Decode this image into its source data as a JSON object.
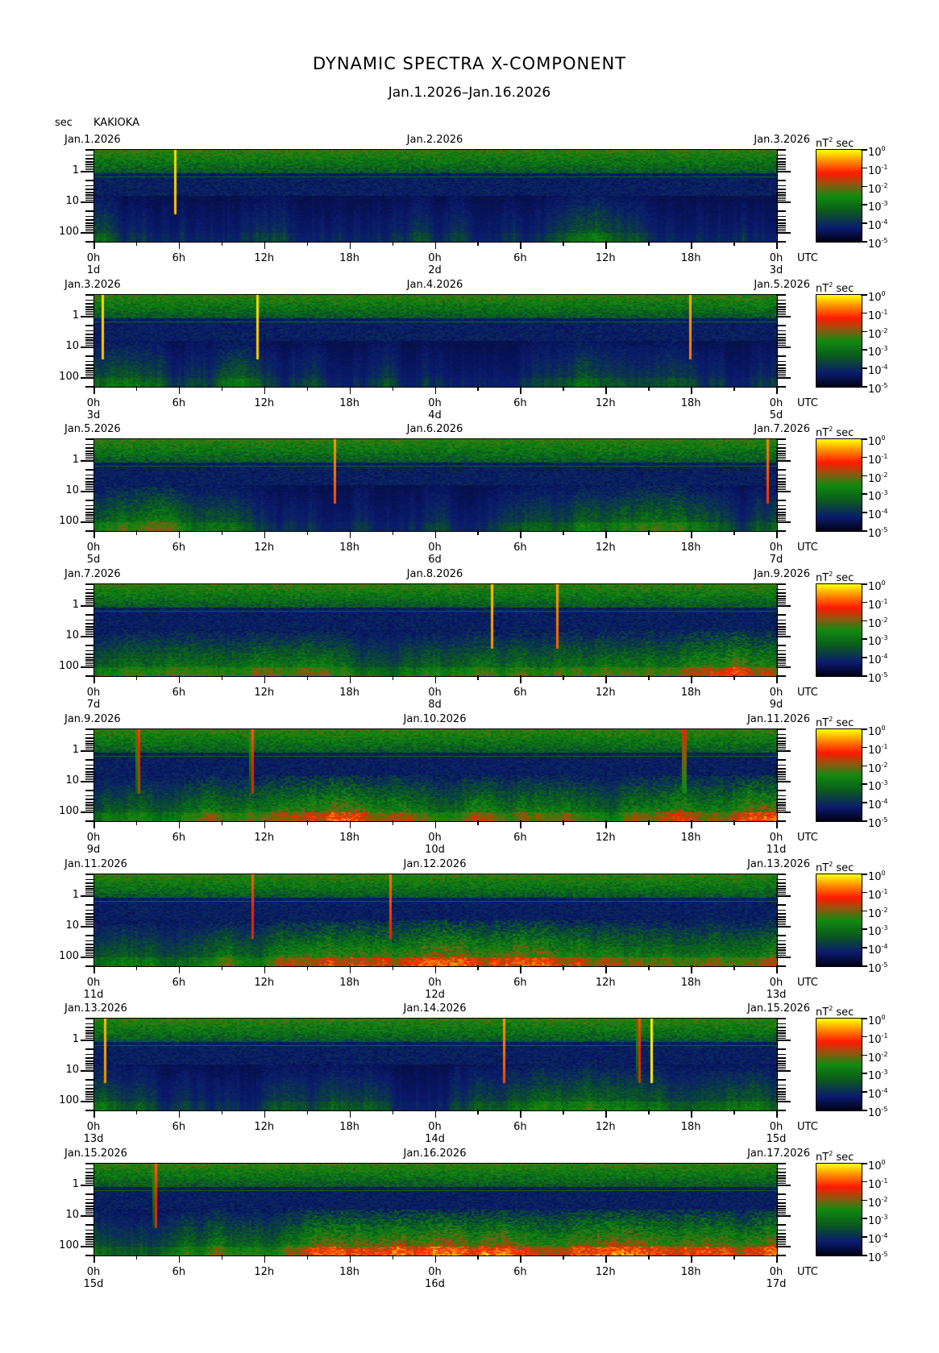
{
  "chart_data": {
    "type": "heatmap",
    "title": "DYNAMIC SPECTRA X-COMPONENT",
    "subtitle": "Jan.1.2026–Jan.16.2026",
    "station": "KAKIOKA",
    "ylabel": "sec",
    "y_scale": "log",
    "ylim": [
      0.2,
      200
    ],
    "yticks": [
      "1",
      "10",
      "100"
    ],
    "xticks": [
      "0h",
      "6h",
      "12h",
      "18h",
      "0h",
      "6h",
      "12h",
      "18h",
      "0h"
    ],
    "x_timezone": "UTC",
    "colorbar": {
      "label": "nT",
      "label_sup": "2",
      "label_unit": "sec",
      "scale": "log",
      "range": [
        1e-05,
        1
      ],
      "ticks": [
        {
          "base": "10",
          "exp": "0"
        },
        {
          "base": "10",
          "exp": "-1"
        },
        {
          "base": "10",
          "exp": "-2"
        },
        {
          "base": "10",
          "exp": "-3"
        },
        {
          "base": "10",
          "exp": "-4"
        },
        {
          "base": "10",
          "exp": "-5"
        }
      ],
      "colors": [
        "#000010",
        "#0a1a6e",
        "#0b5f1a",
        "#108a10",
        "#8a5a10",
        "#ff1a00",
        "#ff8a00",
        "#ffff00"
      ]
    },
    "panels": [
      {
        "dates": [
          "Jan.1.2026",
          "Jan.2.2026",
          "Jan.3.2026"
        ],
        "days": [
          "1d",
          "2d",
          "3d"
        ],
        "bursts_hours": [
          5.6
        ]
      },
      {
        "dates": [
          "Jan.3.2026",
          "Jan.4.2026",
          "Jan.5.2026"
        ],
        "days": [
          "3d",
          "4d",
          "5d"
        ],
        "bursts_hours": [
          0.5,
          11.4,
          41.8
        ]
      },
      {
        "dates": [
          "Jan.5.2026",
          "Jan.6.2026",
          "Jan.7.2026"
        ],
        "days": [
          "5d",
          "6d",
          "7d"
        ],
        "bursts_hours": [
          16.8,
          47.3
        ]
      },
      {
        "dates": [
          "Jan.7.2026",
          "Jan.8.2026",
          "Jan.9.2026"
        ],
        "days": [
          "7d",
          "8d",
          "9d"
        ],
        "bursts_hours": [
          27.9,
          32.5
        ]
      },
      {
        "dates": [
          "Jan.9.2026",
          "Jan.10.2026",
          "Jan.11.2026"
        ],
        "days": [
          "9d",
          "10d",
          "11d"
        ],
        "bursts_hours": [
          3.0,
          11.0,
          41.4
        ]
      },
      {
        "dates": [
          "Jan.11.2026",
          "Jan.12.2026",
          "Jan.13.2026"
        ],
        "days": [
          "11d",
          "12d",
          "13d"
        ],
        "bursts_hours": [
          11.1,
          20.7
        ]
      },
      {
        "dates": [
          "Jan.13.2026",
          "Jan.14.2026",
          "Jan.15.2026"
        ],
        "days": [
          "13d",
          "14d",
          "15d"
        ],
        "bursts_hours": [
          0.7,
          28.7,
          38.2,
          39.1
        ]
      },
      {
        "dates": [
          "Jan.15.2026",
          "Jan.16.2026",
          "Jan.17.2026"
        ],
        "days": [
          "15d",
          "16d",
          "17d"
        ],
        "bursts_hours": [
          4.2
        ]
      }
    ]
  }
}
